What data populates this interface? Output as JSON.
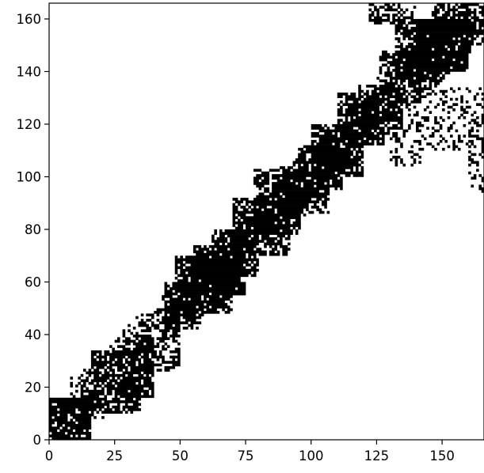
{
  "chart_data": {
    "type": "heatmap",
    "description_kind": "binary sparsity / adjacency matrix (matplotlib spy-style)",
    "grid_size": 166,
    "xlim": [
      0,
      166
    ],
    "ylim": [
      0,
      166
    ],
    "x_ticks": [
      0,
      25,
      50,
      75,
      100,
      125,
      150
    ],
    "x_tick_labels": [
      "0",
      "25",
      "50",
      "75",
      "100",
      "125",
      "150"
    ],
    "y_ticks": [
      0,
      20,
      40,
      60,
      80,
      100,
      120,
      140,
      160
    ],
    "y_tick_labels": [
      "0",
      "20",
      "40",
      "60",
      "80",
      "100",
      "120",
      "140",
      "160"
    ],
    "title": "",
    "xlabel": "",
    "ylabel": "",
    "grid": false,
    "legend": "none",
    "colors": {
      "filled": "#000000",
      "empty": "#ffffff",
      "axes": "#000000"
    },
    "blocks": [
      {
        "x": [
          0,
          16
        ],
        "y": [
          0,
          16
        ],
        "density": 0.82
      },
      {
        "x": [
          8,
          16
        ],
        "y": [
          16,
          24
        ],
        "density": 0.35
      },
      {
        "x": [
          16,
          35
        ],
        "y": [
          10,
          34
        ],
        "density": 0.62
      },
      {
        "x": [
          28,
          40
        ],
        "y": [
          16,
          38
        ],
        "density": 0.7
      },
      {
        "x": [
          35,
          50
        ],
        "y": [
          26,
          48
        ],
        "density": 0.45
      },
      {
        "x": [
          44,
          57
        ],
        "y": [
          42,
          60
        ],
        "density": 0.72
      },
      {
        "x": [
          48,
          70
        ],
        "y": [
          48,
          70
        ],
        "density": 0.74
      },
      {
        "x": [
          55,
          75
        ],
        "y": [
          55,
          74
        ],
        "density": 0.78
      },
      {
        "x": [
          62,
          80
        ],
        "y": [
          62,
          80
        ],
        "density": 0.6
      },
      {
        "x": [
          70,
          92
        ],
        "y": [
          70,
          92
        ],
        "density": 0.58
      },
      {
        "x": [
          78,
          96
        ],
        "y": [
          78,
          103
        ],
        "density": 0.6
      },
      {
        "x": [
          88,
          107
        ],
        "y": [
          86,
          104
        ],
        "density": 0.62
      },
      {
        "x": [
          95,
          112
        ],
        "y": [
          95,
          112
        ],
        "density": 0.72
      },
      {
        "x": [
          100,
          120
        ],
        "y": [
          100,
          120
        ],
        "density": 0.7
      },
      {
        "x": [
          110,
          128
        ],
        "y": [
          112,
          132
        ],
        "density": 0.64
      },
      {
        "x": [
          118,
          135
        ],
        "y": [
          118,
          135
        ],
        "density": 0.55
      },
      {
        "x": [
          126,
          142
        ],
        "y": [
          128,
          148
        ],
        "density": 0.55
      },
      {
        "x": [
          132,
          150
        ],
        "y": [
          136,
          160
        ],
        "density": 0.72
      },
      {
        "x": [
          140,
          160
        ],
        "y": [
          140,
          160
        ],
        "density": 0.82
      },
      {
        "x": [
          146,
          166
        ],
        "y": [
          150,
          166
        ],
        "density": 0.6
      },
      {
        "x": [
          122,
          140
        ],
        "y": [
          158,
          166
        ],
        "density": 0.5
      },
      {
        "x": [
          140,
          166
        ],
        "y": [
          110,
          134
        ],
        "density": 0.22
      },
      {
        "x": [
          130,
          142
        ],
        "y": [
          104,
          128
        ],
        "density": 0.22
      },
      {
        "x": [
          160,
          166
        ],
        "y": [
          94,
          122
        ],
        "density": 0.25
      }
    ]
  }
}
